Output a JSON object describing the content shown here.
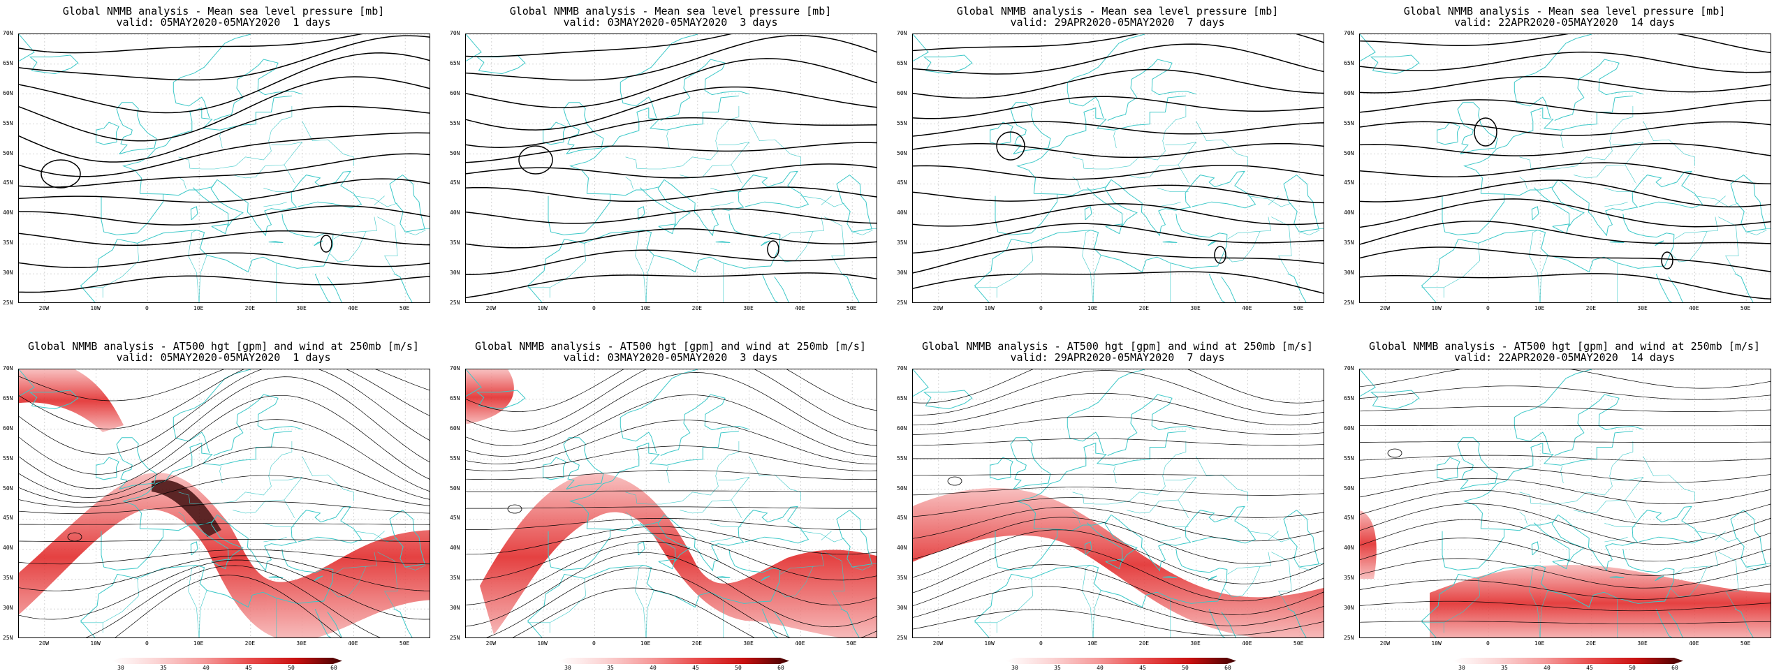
{
  "panels": [
    {
      "title1": "Global NMMB analysis - Mean sea level pressure [mb]",
      "title2": "valid: 05MAY2020-05MAY2020  1 days",
      "type": "mslp"
    },
    {
      "title1": "Global NMMB analysis - Mean sea level pressure [mb]",
      "title2": "valid: 03MAY2020-05MAY2020  3 days",
      "type": "mslp"
    },
    {
      "title1": "Global NMMB analysis - Mean sea level pressure [mb]",
      "title2": "valid: 29APR2020-05MAY2020  7 days",
      "type": "mslp"
    },
    {
      "title1": "Global NMMB analysis - Mean sea level pressure [mb]",
      "title2": "valid: 22APR2020-05MAY2020  14 days",
      "type": "mslp"
    },
    {
      "title1": "Global NMMB analysis - AT500 hgt [gpm] and wind at 250mb [m/s]",
      "title2": "valid: 05MAY2020-05MAY2020  1 days",
      "type": "z500"
    },
    {
      "title1": "Global NMMB analysis - AT500 hgt [gpm] and wind at 250mb [m/s]",
      "title2": "valid: 03MAY2020-05MAY2020  3 days",
      "type": "z500"
    },
    {
      "title1": "Global NMMB analysis - AT500 hgt [gpm] and wind at 250mb [m/s]",
      "title2": "valid: 29APR2020-05MAY2020  7 days",
      "type": "z500"
    },
    {
      "title1": "Global NMMB analysis - AT500 hgt [gpm] and wind at 250mb [m/s]",
      "title2": "valid: 22APR2020-05MAY2020  14 days",
      "type": "z500"
    }
  ],
  "lat_labels": [
    "70N",
    "65N",
    "60N",
    "55N",
    "50N",
    "45N",
    "40N",
    "35N",
    "30N",
    "25N"
  ],
  "lon_labels": [
    "20W",
    "10W",
    "0",
    "10E",
    "20E",
    "30E",
    "40E",
    "50E"
  ],
  "colorbar_labels": [
    "30",
    "35",
    "40",
    "45",
    "50",
    "60"
  ],
  "colors": {
    "coast": "#3cc8c8",
    "contour": "#000000",
    "jet_low": "#fbd3d3",
    "jet_high": "#b00000",
    "jet_dark": "#400000"
  }
}
